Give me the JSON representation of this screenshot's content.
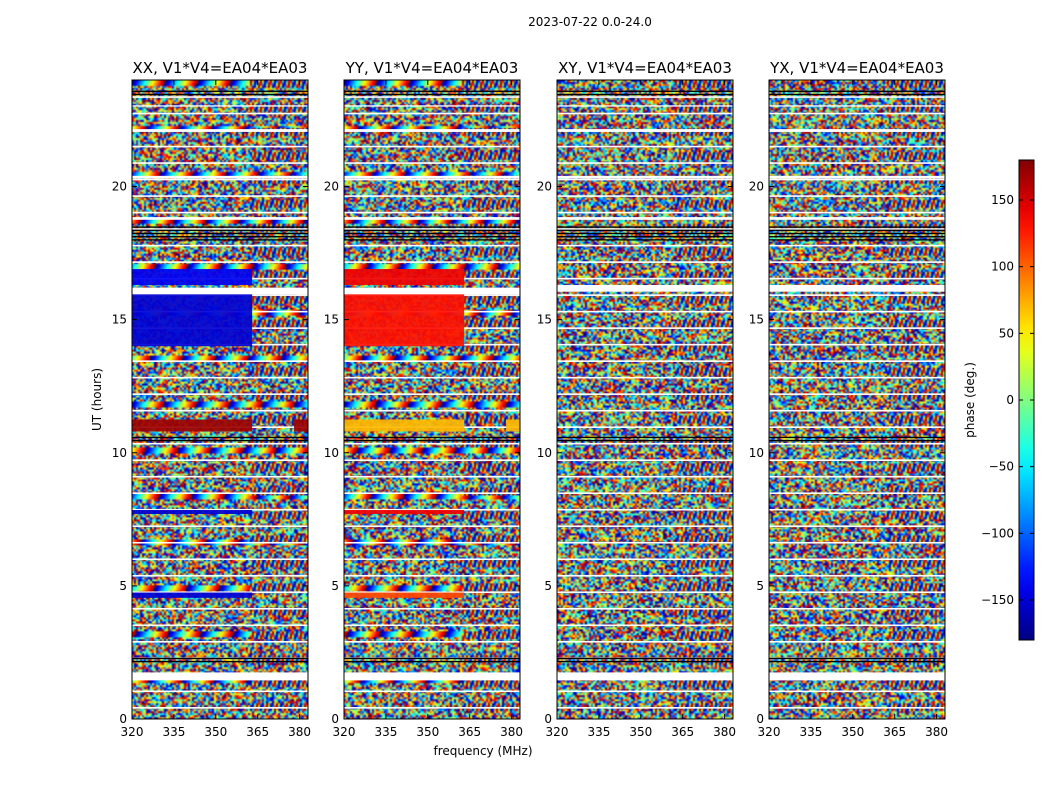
{
  "figure_title": "2023-07-22 0.0-24.0",
  "chart_data": {
    "type": "heatmap",
    "suptitle": "2023-07-22 0.0-24.0",
    "xlabel": "frequency (MHz)",
    "ylabel": "UT (hours)",
    "xlim": [
      320,
      383
    ],
    "ylim": [
      0,
      24
    ],
    "xticks": [
      320,
      335,
      350,
      365,
      380
    ],
    "yticks": [
      0,
      5,
      10,
      15,
      20
    ],
    "colorbar": {
      "label": "phase (deg.)",
      "range": [
        -180,
        180
      ],
      "ticks": [
        150,
        100,
        50,
        0,
        -50,
        -100,
        -150
      ],
      "colormap": "jet",
      "colors": [
        "#00007f",
        "#0000ff",
        "#007fff",
        "#00ffff",
        "#7fff7f",
        "#ffff00",
        "#ff7f00",
        "#ff0000",
        "#7f0000"
      ]
    },
    "panels": [
      {
        "title": "XX, V1*V4=EA04*EA03",
        "show_ylabel": true,
        "gaps": [
          [
            1.45,
            1.75
          ],
          [
            15.95,
            16.2
          ],
          [
            18.75,
            18.85
          ],
          [
            20.3,
            20.4
          ],
          [
            22.05,
            22.15
          ],
          [
            23.0,
            23.05
          ]
        ],
        "dark_bands": [
          [
            2.1,
            2.3
          ],
          [
            10.45,
            10.6
          ],
          [
            17.9,
            18.5
          ],
          [
            23.45,
            23.6
          ]
        ],
        "solid_bands": [
          {
            "from": 16.3,
            "to": 16.9,
            "freq_to": 363,
            "phase": -140
          },
          {
            "from": 14.0,
            "to": 16.0,
            "freq_to": 363,
            "phase": -150
          },
          {
            "from": 10.8,
            "to": 11.25,
            "freq_to": 363,
            "phase": 170
          },
          {
            "from": 10.8,
            "to": 11.25,
            "freq_from": 378,
            "freq_to": 383,
            "phase": 170
          },
          {
            "from": 4.55,
            "to": 4.75,
            "freq_to": 363,
            "phase": -150
          },
          {
            "from": 7.7,
            "to": 7.85,
            "freq_to": 363,
            "phase": -150
          }
        ]
      },
      {
        "title": "YY, V1*V4=EA04*EA03",
        "show_ylabel": false,
        "gaps": [
          [
            1.45,
            1.75
          ],
          [
            15.95,
            16.2
          ],
          [
            18.75,
            18.85
          ],
          [
            20.3,
            20.4
          ],
          [
            22.05,
            22.15
          ],
          [
            23.0,
            23.05
          ]
        ],
        "dark_bands": [
          [
            2.1,
            2.3
          ],
          [
            10.45,
            10.6
          ],
          [
            17.9,
            18.5
          ],
          [
            23.45,
            23.6
          ]
        ],
        "solid_bands": [
          {
            "from": 16.3,
            "to": 16.9,
            "freq_to": 363,
            "phase": 140
          },
          {
            "from": 14.0,
            "to": 16.0,
            "freq_to": 363,
            "phase": 130
          },
          {
            "from": 10.8,
            "to": 11.25,
            "freq_to": 363,
            "phase": 70
          },
          {
            "from": 10.8,
            "to": 11.25,
            "freq_from": 378,
            "freq_to": 383,
            "phase": 70
          },
          {
            "from": 4.55,
            "to": 4.75,
            "freq_to": 363,
            "phase": 110
          },
          {
            "from": 7.7,
            "to": 7.85,
            "freq_to": 363,
            "phase": 140
          }
        ]
      },
      {
        "title": "XY, V1*V4=EA04*EA03",
        "show_ylabel": false,
        "gaps": [
          [
            1.45,
            1.75
          ],
          [
            16.05,
            16.3
          ],
          [
            18.75,
            18.85
          ],
          [
            20.3,
            20.4
          ],
          [
            22.05,
            22.15
          ],
          [
            23.0,
            23.05
          ]
        ],
        "dark_bands": [
          [
            2.1,
            2.3
          ],
          [
            10.45,
            10.6
          ],
          [
            17.9,
            18.5
          ],
          [
            23.45,
            23.6
          ]
        ],
        "solid_bands": []
      },
      {
        "title": "YX, V1*V4=EA04*EA03",
        "show_ylabel": false,
        "gaps": [
          [
            1.45,
            1.75
          ],
          [
            16.05,
            16.3
          ],
          [
            18.75,
            18.85
          ],
          [
            20.3,
            20.4
          ],
          [
            22.05,
            22.15
          ],
          [
            23.0,
            23.05
          ]
        ],
        "dark_bands": [
          [
            2.1,
            2.3
          ],
          [
            10.45,
            10.6
          ],
          [
            17.9,
            18.5
          ],
          [
            23.45,
            23.6
          ]
        ],
        "solid_bands": []
      }
    ]
  }
}
